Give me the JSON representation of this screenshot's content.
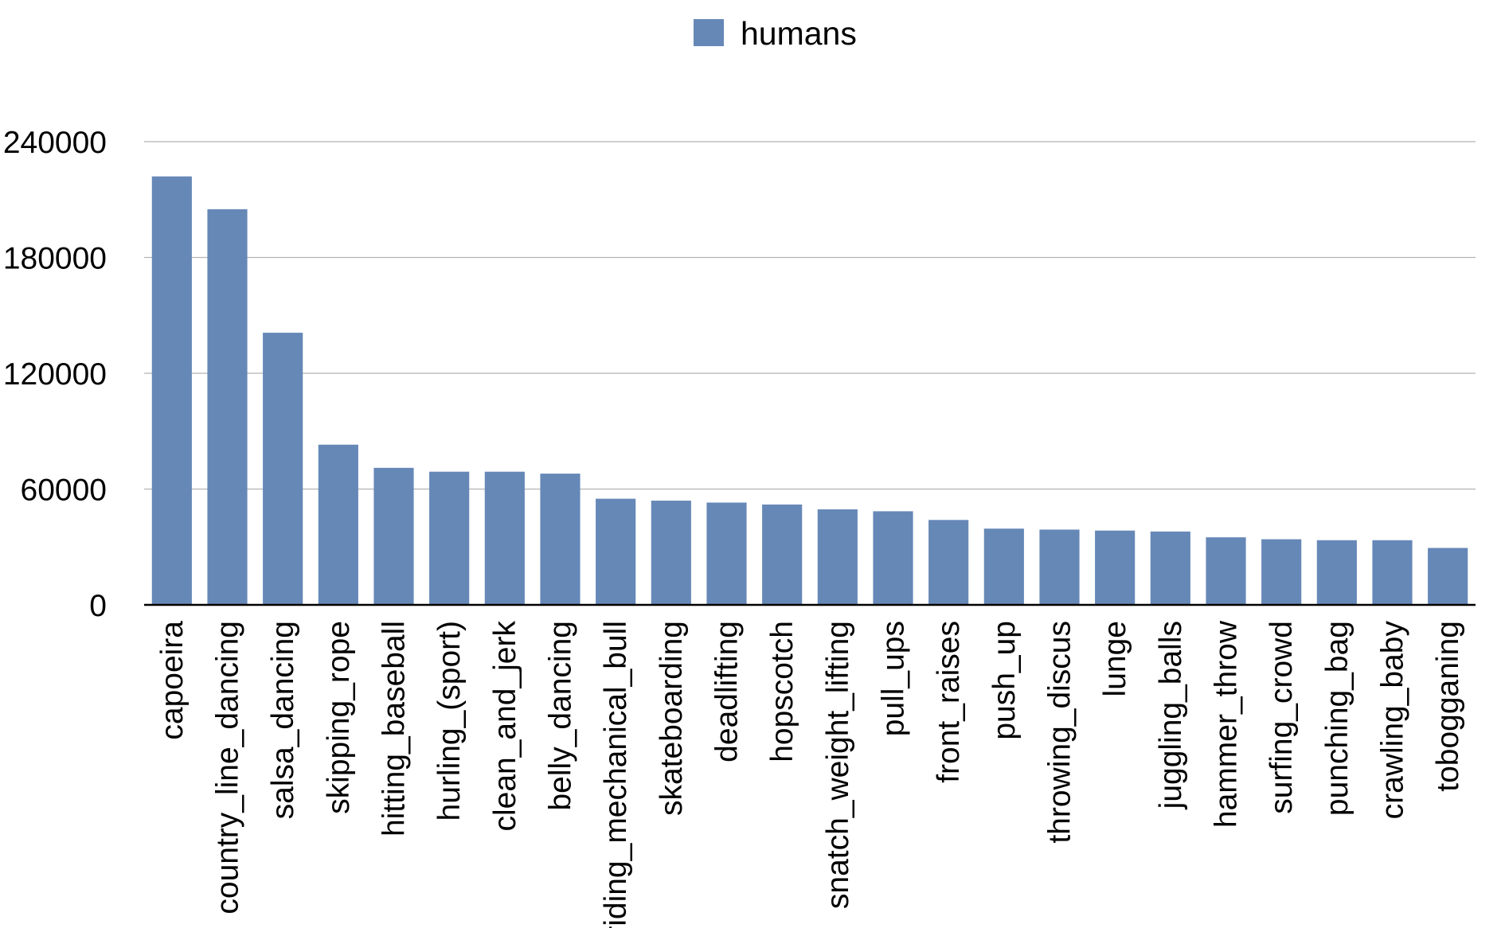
{
  "chart_data": {
    "type": "bar",
    "title": "",
    "xlabel": "",
    "ylabel": "",
    "ylim": [
      0,
      240000
    ],
    "yticks": [
      0,
      60000,
      120000,
      180000,
      240000
    ],
    "ytick_labels": [
      "0",
      "60000",
      "120000",
      "180000",
      "240000"
    ],
    "grid": true,
    "legend_position": "top-center",
    "categories": [
      "capoeira",
      "country_line_dancing",
      "salsa_dancing",
      "skipping_rope",
      "hitting_baseball",
      "hurling_(sport)",
      "clean_and_jerk",
      "belly_dancing",
      "riding_mechanical_bull",
      "skateboarding",
      "deadlifting",
      "hopscotch",
      "snatch_weight_lifting",
      "pull_ups",
      "front_raises",
      "push_up",
      "throwing_discus",
      "lunge",
      "juggling_balls",
      "hammer_throw",
      "surfing_crowd",
      "punching_bag",
      "crawling_baby",
      "tobogganing"
    ],
    "series": [
      {
        "name": "humans",
        "color": "#6688b7",
        "values": [
          222000,
          205000,
          141000,
          83000,
          71000,
          69000,
          69000,
          68000,
          55000,
          54000,
          53000,
          52000,
          49500,
          48500,
          44000,
          39500,
          39000,
          38500,
          38000,
          35000,
          34000,
          33500,
          33500,
          29500
        ]
      }
    ]
  }
}
